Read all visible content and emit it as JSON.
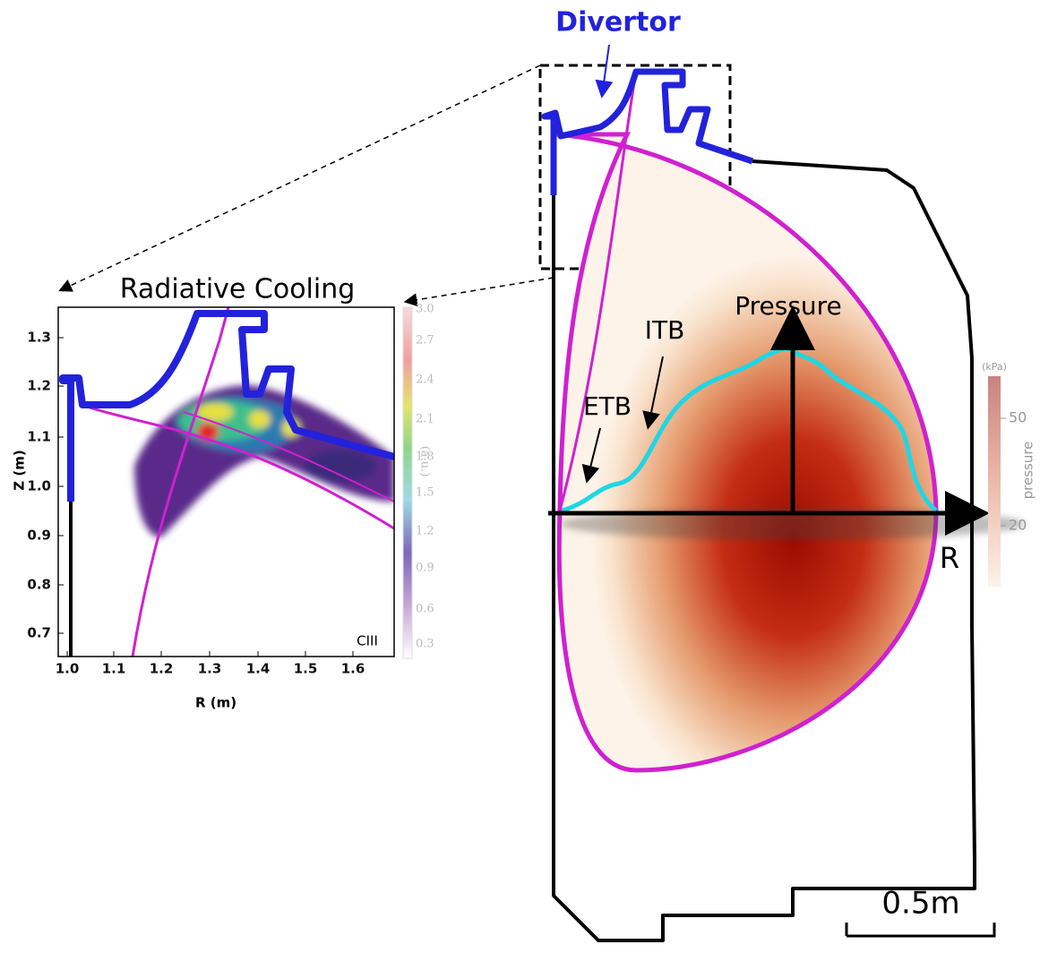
{
  "divertor_label": "Divertor",
  "inset": {
    "title": "Radiative Cooling",
    "y_axis_label": "Z (m)",
    "x_axis_label": "R (m)",
    "y_ticks": [
      "1.3",
      "1.2",
      "1.1",
      "1.0",
      "0.9",
      "0.8",
      "0.7"
    ],
    "x_ticks": [
      "1.0",
      "1.1",
      "1.2",
      "1.3",
      "1.4",
      "1.5",
      "1.6"
    ],
    "colorbar_ticks": [
      "3.0",
      "2.7",
      "2.4",
      "2.1",
      "1.8",
      "1.5",
      "1.2",
      "0.9",
      "0.6",
      "0.3"
    ],
    "colorbar_label": "(a.u.)",
    "species_label": "CIII"
  },
  "main": {
    "pressure_label": "Pressure",
    "itb_label": "ITB",
    "etb_label": "ETB",
    "r_label": "R",
    "colorbar_unit": "(kPa)",
    "colorbar_ticks": [
      "50",
      "20"
    ],
    "colorbar_label": "pressure",
    "scale_bar": "0.5m"
  }
}
